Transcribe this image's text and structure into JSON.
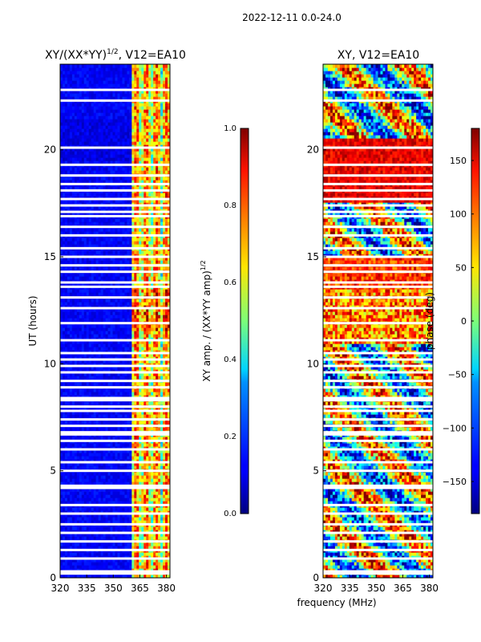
{
  "suptitle": "2022-12-11 0.0-24.0",
  "xlabel": "frequency (MHz)",
  "ylabel": "UT (hours)",
  "chart_data": [
    {
      "type": "heatmap",
      "title_main": "XY/(XX*YY)",
      "title_sup": "1/2",
      "title_tail": ", V12=EA10",
      "xlim": [
        320,
        382
      ],
      "ylim": [
        0,
        24
      ],
      "x_ticks": [
        320,
        335,
        350,
        365,
        380
      ],
      "y_ticks": [
        0,
        5,
        10,
        15,
        20
      ],
      "colorbar": {
        "label_main": "XY amp. / (XX*YY amp)",
        "label_sup": "1/2",
        "range": [
          0.0,
          1.0
        ],
        "ticks": [
          "0.0",
          "0.2",
          "0.4",
          "0.6",
          "0.8",
          "1.0"
        ]
      },
      "gap_hours": [
        0.2,
        0.3,
        0.9,
        1.3,
        1.7,
        2.1,
        2.5,
        3.0,
        3.4,
        4.2,
        4.3,
        5.0,
        5.4,
        6.0,
        6.4,
        6.7,
        6.8,
        7.1,
        7.4,
        7.8,
        8.0,
        8.3,
        8.4,
        8.9,
        9.2,
        9.6,
        9.9,
        10.2,
        10.5,
        11.1,
        11.9,
        12.6,
        13.1,
        13.6,
        13.8,
        14.3,
        14.6,
        15.0,
        15.4,
        16.0,
        16.4,
        16.9,
        17.1,
        17.4,
        17.7,
        18.1,
        18.4,
        18.8,
        19.3,
        20.1,
        22.3,
        22.8
      ]
    },
    {
      "type": "heatmap",
      "title_main": "XY, V12=EA10",
      "xlim": [
        320,
        382
      ],
      "ylim": [
        0,
        24
      ],
      "x_ticks": [
        320,
        335,
        350,
        365,
        380
      ],
      "y_ticks": [
        0,
        5,
        10,
        15,
        20
      ],
      "colorbar": {
        "label_main": "phase (deg)",
        "range": [
          -180,
          180
        ],
        "ticks": [
          "-150",
          "-100",
          "-50",
          "0",
          "50",
          "100",
          "150"
        ],
        "tick_values": [
          -150,
          -100,
          -50,
          0,
          50,
          100,
          150
        ]
      }
    }
  ]
}
